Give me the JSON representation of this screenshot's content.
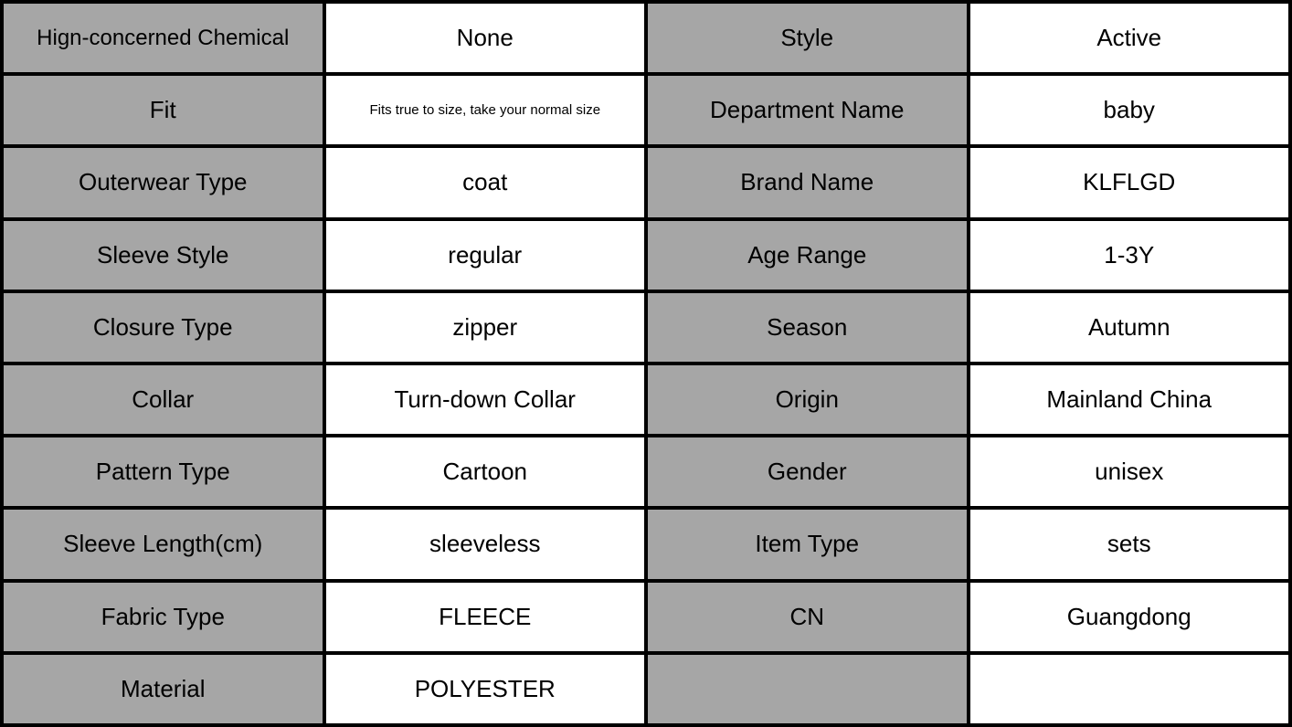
{
  "colors": {
    "label_bg": "#a6a6a6",
    "value_bg": "#ffffff",
    "border": "#000000"
  },
  "rows": [
    {
      "label1": "Hign-concerned Chemical",
      "value1": "None",
      "label2": "Style",
      "value2": "Active"
    },
    {
      "label1": "Fit",
      "value1": "Fits true to size, take your normal size",
      "label2": "Department Name",
      "value2": "baby"
    },
    {
      "label1": "Outerwear Type",
      "value1": "coat",
      "label2": "Brand Name",
      "value2": "KLFLGD"
    },
    {
      "label1": "Sleeve Style",
      "value1": "regular",
      "label2": "Age Range",
      "value2": "1-3Y"
    },
    {
      "label1": "Closure Type",
      "value1": "zipper",
      "label2": "Season",
      "value2": "Autumn"
    },
    {
      "label1": "Collar",
      "value1": "Turn-down Collar",
      "label2": "Origin",
      "value2": "Mainland China"
    },
    {
      "label1": "Pattern Type",
      "value1": "Cartoon",
      "label2": "Gender",
      "value2": "unisex"
    },
    {
      "label1": "Sleeve Length(cm)",
      "value1": "sleeveless",
      "label2": "Item Type",
      "value2": "sets"
    },
    {
      "label1": "Fabric Type",
      "value1": "FLEECE",
      "label2": "CN",
      "value2": "Guangdong"
    },
    {
      "label1": "Material",
      "value1": "POLYESTER",
      "label2": "",
      "value2": ""
    }
  ]
}
